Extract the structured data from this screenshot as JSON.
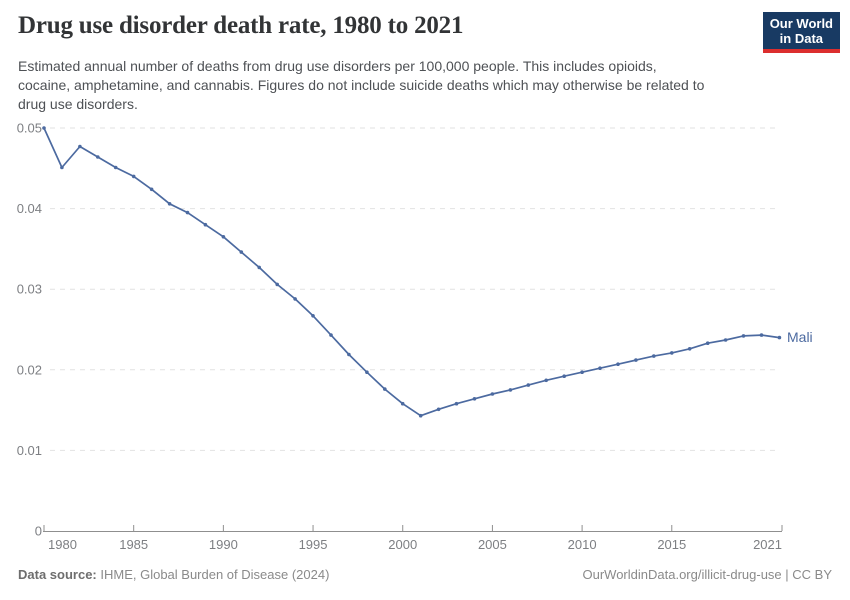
{
  "header": {
    "title": "Drug use disorder death rate, 1980 to 2021",
    "subtitle_lines": [
      "Estimated annual number of deaths from drug use disorders per 100,000 people. This includes opioids,",
      "cocaine, amphetamine, and cannabis. Figures do not include suicide deaths which may otherwise be related to",
      "drug use disorders."
    ]
  },
  "logo": {
    "line1": "Our World",
    "line2": "in Data",
    "bg_color": "#183a63",
    "accent_color": "#dc2e2e"
  },
  "chart_data": {
    "type": "line",
    "title": "Drug use disorder death rate, 1980 to 2021",
    "xlabel": "",
    "ylabel": "",
    "x": [
      1980,
      1981,
      1982,
      1983,
      1984,
      1985,
      1986,
      1987,
      1988,
      1989,
      1990,
      1991,
      1992,
      1993,
      1994,
      1995,
      1996,
      1997,
      1998,
      1999,
      2000,
      2001,
      2002,
      2003,
      2004,
      2005,
      2006,
      2007,
      2008,
      2009,
      2010,
      2011,
      2012,
      2013,
      2014,
      2015,
      2016,
      2017,
      2018,
      2019,
      2020,
      2021
    ],
    "series": [
      {
        "name": "Mali",
        "color": "#4c6aa0",
        "values": [
          0.05,
          0.0451,
          0.0477,
          0.0464,
          0.0451,
          0.044,
          0.0424,
          0.0406,
          0.0395,
          0.038,
          0.0365,
          0.0346,
          0.0327,
          0.0306,
          0.0288,
          0.0267,
          0.0243,
          0.0219,
          0.0197,
          0.0176,
          0.0158,
          0.0143,
          0.0151,
          0.0158,
          0.0164,
          0.017,
          0.0175,
          0.0181,
          0.0187,
          0.0192,
          0.0197,
          0.0202,
          0.0207,
          0.0212,
          0.0217,
          0.0221,
          0.0226,
          0.0233,
          0.0237,
          0.0242,
          0.0243,
          0.024
        ]
      }
    ],
    "xlim": [
      1980,
      2021
    ],
    "ylim": [
      0,
      0.05
    ],
    "yticks": [
      0,
      0.01,
      0.02,
      0.03,
      0.04,
      0.05
    ],
    "ytick_labels": [
      "0",
      "0.01",
      "0.02",
      "0.03",
      "0.04",
      "0.05"
    ],
    "xticks": [
      1980,
      1985,
      1990,
      1995,
      2000,
      2005,
      2010,
      2015,
      2021
    ],
    "grid": "horizontal dashed, legend as end-of-line label on right",
    "entity_label": "Mali"
  },
  "footer": {
    "datasource_label": "Data source:",
    "datasource_value": " IHME, Global Burden of Disease (2024)",
    "right_text": "OurWorldinData.org/illicit-drug-use | CC BY"
  },
  "colors": {
    "line": "#4c6aa0",
    "gridline": "#e2e2e2",
    "axis": "#8f8f8f",
    "axis_text": "#7d7f83",
    "title_text": "#323436",
    "subtitle_text": "#4e5155"
  }
}
